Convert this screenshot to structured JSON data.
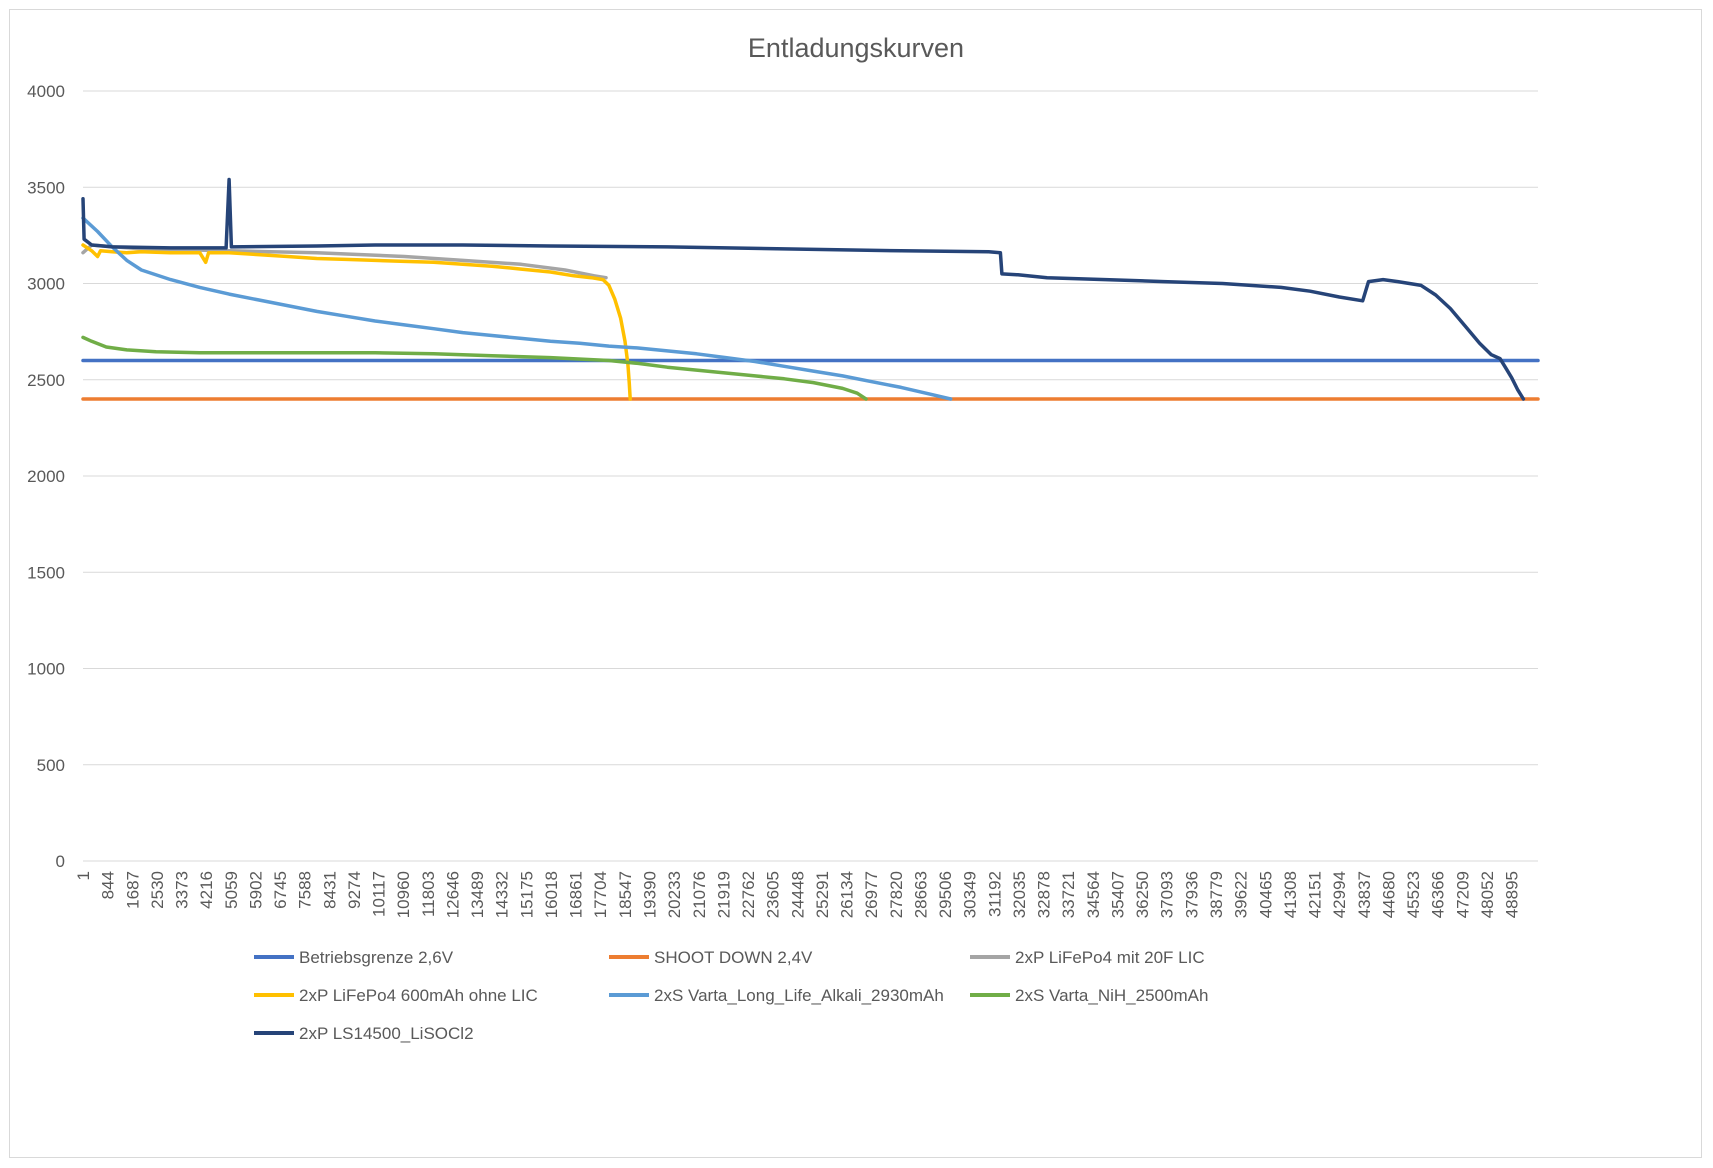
{
  "chart_data": {
    "type": "line",
    "title": "Entladungskurven",
    "xlabel": "",
    "ylabel": "",
    "ylim": [
      0,
      4000
    ],
    "yticks": [
      0,
      500,
      1000,
      1500,
      2000,
      2500,
      3000,
      3500,
      4000
    ],
    "xlim": [
      1,
      49800
    ],
    "xticks": [
      1,
      844,
      1687,
      2530,
      3373,
      4216,
      5059,
      5902,
      6745,
      7588,
      8431,
      9274,
      10117,
      10960,
      11803,
      12646,
      13489,
      14332,
      15175,
      16018,
      16861,
      17704,
      18547,
      19390,
      20233,
      21076,
      21919,
      22762,
      23605,
      24448,
      25291,
      26134,
      26977,
      27820,
      28663,
      29506,
      30349,
      31192,
      32035,
      32878,
      33721,
      34564,
      35407,
      36250,
      37093,
      37936,
      38779,
      39622,
      40465,
      41308,
      42151,
      42994,
      43837,
      44680,
      45523,
      46366,
      47209,
      48052,
      48895
    ],
    "grid": "horizontal",
    "legend_position": "bottom",
    "series": [
      {
        "name": "Betriebsgrenze 2,6V",
        "color": "#4472c4",
        "points": [
          [
            1,
            2600
          ],
          [
            49800,
            2600
          ]
        ]
      },
      {
        "name": "SHOOT DOWN 2,4V",
        "color": "#ed7d31",
        "points": [
          [
            1,
            2400
          ],
          [
            49800,
            2400
          ]
        ]
      },
      {
        "name": "2xP LiFePo4 mit 20F LIC",
        "color": "#a5a5a5",
        "points": [
          [
            1,
            3160
          ],
          [
            300,
            3200
          ],
          [
            2000,
            3180
          ],
          [
            5000,
            3170
          ],
          [
            8000,
            3160
          ],
          [
            11000,
            3140
          ],
          [
            13000,
            3120
          ],
          [
            15000,
            3100
          ],
          [
            16500,
            3070
          ],
          [
            17500,
            3040
          ],
          [
            17900,
            3030
          ]
        ]
      },
      {
        "name": "2xP LiFePo4 600mAh ohne LIC",
        "color": "#ffc000",
        "points": [
          [
            1,
            3200
          ],
          [
            300,
            3170
          ],
          [
            500,
            3140
          ],
          [
            600,
            3170
          ],
          [
            1000,
            3165
          ],
          [
            1500,
            3160
          ],
          [
            2000,
            3165
          ],
          [
            3000,
            3160
          ],
          [
            4000,
            3160
          ],
          [
            4200,
            3110
          ],
          [
            4300,
            3160
          ],
          [
            5000,
            3160
          ],
          [
            6000,
            3150
          ],
          [
            7000,
            3140
          ],
          [
            8000,
            3130
          ],
          [
            9000,
            3125
          ],
          [
            10000,
            3120
          ],
          [
            11000,
            3115
          ],
          [
            12000,
            3110
          ],
          [
            13000,
            3100
          ],
          [
            14000,
            3090
          ],
          [
            15000,
            3075
          ],
          [
            16000,
            3060
          ],
          [
            16800,
            3040
          ],
          [
            17400,
            3030
          ],
          [
            17800,
            3020
          ],
          [
            18000,
            2990
          ],
          [
            18200,
            2920
          ],
          [
            18400,
            2820
          ],
          [
            18550,
            2700
          ],
          [
            18650,
            2580
          ],
          [
            18700,
            2480
          ],
          [
            18730,
            2400
          ]
        ]
      },
      {
        "name": "2xS Varta_Long_Life_Alkali_2930mAh",
        "color": "#5b9bd5",
        "points": [
          [
            1,
            3340
          ],
          [
            500,
            3270
          ],
          [
            1000,
            3190
          ],
          [
            1500,
            3120
          ],
          [
            2000,
            3070
          ],
          [
            3000,
            3020
          ],
          [
            4000,
            2980
          ],
          [
            5000,
            2945
          ],
          [
            6000,
            2915
          ],
          [
            7000,
            2885
          ],
          [
            8000,
            2855
          ],
          [
            9000,
            2830
          ],
          [
            10000,
            2805
          ],
          [
            11000,
            2785
          ],
          [
            12000,
            2765
          ],
          [
            13000,
            2745
          ],
          [
            14000,
            2730
          ],
          [
            15000,
            2715
          ],
          [
            16000,
            2700
          ],
          [
            17000,
            2690
          ],
          [
            18000,
            2675
          ],
          [
            19000,
            2665
          ],
          [
            20000,
            2650
          ],
          [
            21000,
            2635
          ],
          [
            22000,
            2615
          ],
          [
            23000,
            2595
          ],
          [
            24000,
            2570
          ],
          [
            25000,
            2545
          ],
          [
            26000,
            2520
          ],
          [
            27000,
            2490
          ],
          [
            28000,
            2460
          ],
          [
            29000,
            2425
          ],
          [
            29700,
            2400
          ]
        ]
      },
      {
        "name": "2xS Varta_NiH_2500mAh",
        "color": "#70ad47",
        "points": [
          [
            1,
            2720
          ],
          [
            300,
            2700
          ],
          [
            800,
            2670
          ],
          [
            1500,
            2655
          ],
          [
            2500,
            2645
          ],
          [
            4000,
            2640
          ],
          [
            7000,
            2640
          ],
          [
            10000,
            2640
          ],
          [
            12000,
            2635
          ],
          [
            14000,
            2625
          ],
          [
            16000,
            2615
          ],
          [
            18000,
            2600
          ],
          [
            19000,
            2585
          ],
          [
            20000,
            2565
          ],
          [
            21000,
            2550
          ],
          [
            22000,
            2535
          ],
          [
            23000,
            2520
          ],
          [
            24000,
            2505
          ],
          [
            25000,
            2485
          ],
          [
            26000,
            2455
          ],
          [
            26500,
            2430
          ],
          [
            26800,
            2400
          ]
        ]
      },
      {
        "name": "2xP LS14500_LiSOCl2",
        "color": "#264478",
        "points": [
          [
            1,
            3440
          ],
          [
            40,
            3230
          ],
          [
            300,
            3200
          ],
          [
            1000,
            3190
          ],
          [
            3000,
            3185
          ],
          [
            4900,
            3185
          ],
          [
            5000,
            3540
          ],
          [
            5080,
            3190
          ],
          [
            8000,
            3195
          ],
          [
            10000,
            3200
          ],
          [
            13000,
            3200
          ],
          [
            16000,
            3195
          ],
          [
            20000,
            3190
          ],
          [
            24000,
            3180
          ],
          [
            28000,
            3170
          ],
          [
            31000,
            3165
          ],
          [
            31400,
            3160
          ],
          [
            31450,
            3050
          ],
          [
            32000,
            3045
          ],
          [
            33000,
            3030
          ],
          [
            35000,
            3020
          ],
          [
            37000,
            3010
          ],
          [
            39000,
            3000
          ],
          [
            41000,
            2980
          ],
          [
            42000,
            2960
          ],
          [
            43000,
            2930
          ],
          [
            43800,
            2910
          ],
          [
            44000,
            3010
          ],
          [
            44500,
            3020
          ],
          [
            45000,
            3010
          ],
          [
            45800,
            2990
          ],
          [
            46300,
            2940
          ],
          [
            46800,
            2870
          ],
          [
            47300,
            2780
          ],
          [
            47800,
            2690
          ],
          [
            48200,
            2630
          ],
          [
            48500,
            2610
          ],
          [
            48700,
            2560
          ],
          [
            48900,
            2510
          ],
          [
            49100,
            2450
          ],
          [
            49300,
            2400
          ]
        ]
      }
    ]
  }
}
